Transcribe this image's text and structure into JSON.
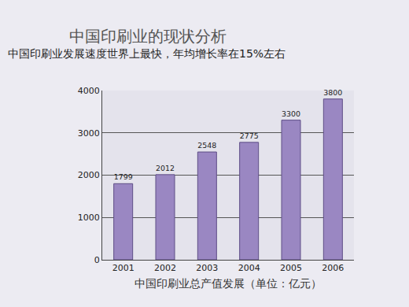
{
  "chart_data": {
    "type": "bar",
    "title": "中国印刷业的现状分析",
    "subtitle": "中国印刷业发展速度世界上最快，年均增长率在15%左右",
    "x_label": "中国印刷业总产值发展（单位：亿元）",
    "categories": [
      "2001",
      "2002",
      "2003",
      "2004",
      "2005",
      "2006"
    ],
    "values": [
      1799,
      2012,
      2548,
      2775,
      3300,
      3800
    ],
    "color": "#9a87c2",
    "ylim": [
      0,
      4000
    ],
    "yticks": [
      0,
      1000,
      2000,
      3000,
      4000
    ],
    "grid": true,
    "data_labels": true
  }
}
